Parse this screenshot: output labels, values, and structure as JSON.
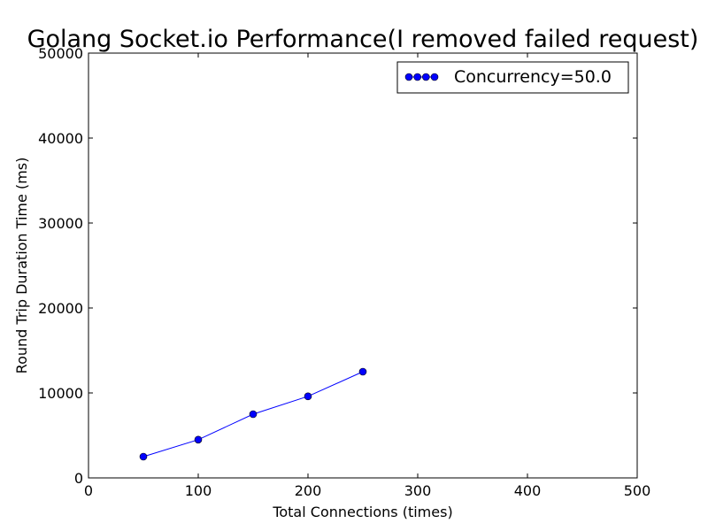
{
  "chart_data": {
    "type": "line",
    "title": "Golang Socket.io Performance(I removed failed request)",
    "xlabel": "Total Connections (times)",
    "ylabel": "Round Trip Duration Time (ms)",
    "xlim": [
      0,
      500
    ],
    "ylim": [
      0,
      50000
    ],
    "x_ticks": [
      0,
      100,
      200,
      300,
      400,
      500
    ],
    "y_ticks": [
      0,
      10000,
      20000,
      30000,
      40000,
      50000
    ],
    "grid": false,
    "legend_position": "top-right",
    "series": [
      {
        "name": "Concurrency=50.0",
        "color": "#0000ff",
        "marker": "circle",
        "x": [
          50,
          100,
          150,
          200,
          250
        ],
        "y": [
          2500,
          4500,
          7500,
          9600,
          12500
        ]
      }
    ]
  }
}
